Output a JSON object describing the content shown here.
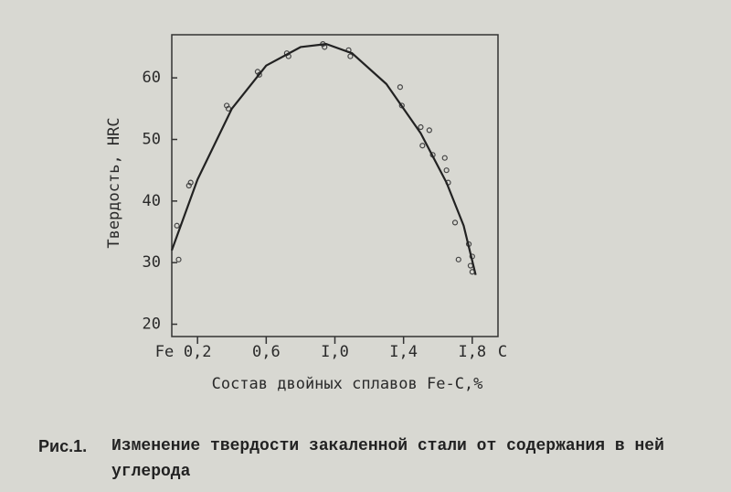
{
  "chart_data": {
    "type": "scatter",
    "y_label": "Твердость, HRC",
    "x_label": "Состав двойных сплавов Fe-C,%",
    "x_left_label": "Fe",
    "x_right_label": "C",
    "xlim": [
      0.05,
      1.95
    ],
    "xticks": [
      {
        "value": 0.2,
        "label": "0,2"
      },
      {
        "value": 0.6,
        "label": "0,6"
      },
      {
        "value": 1.0,
        "label": "I,0"
      },
      {
        "value": 1.4,
        "label": "I,4"
      },
      {
        "value": 1.8,
        "label": "I,8"
      }
    ],
    "ylim": [
      18,
      67
    ],
    "yticks": [
      20,
      30,
      40,
      50,
      60
    ],
    "series": [
      {
        "type": "scatter",
        "color": "#444",
        "x": [
          0.08,
          0.09,
          0.15,
          0.16,
          0.37,
          0.38,
          0.55,
          0.56,
          0.72,
          0.73,
          0.93,
          0.94,
          1.08,
          1.09,
          1.38,
          1.39,
          1.5,
          1.51,
          1.55,
          1.57,
          1.64,
          1.65,
          1.66,
          1.7,
          1.72,
          1.78,
          1.79,
          1.8,
          1.8
        ],
        "values": [
          36,
          30.5,
          42.5,
          43,
          55.5,
          55,
          61,
          60.5,
          64,
          63.5,
          65.5,
          65,
          64.5,
          63.5,
          58.5,
          55.5,
          52,
          49,
          51.5,
          47.5,
          47,
          45,
          43,
          36.5,
          30.5,
          33,
          29.5,
          28.5,
          31
        ]
      },
      {
        "type": "line",
        "color": "#222",
        "x": [
          0.05,
          0.2,
          0.4,
          0.6,
          0.8,
          0.95,
          1.1,
          1.3,
          1.5,
          1.65,
          1.75,
          1.82
        ],
        "values": [
          32,
          43.5,
          55,
          62,
          65,
          65.5,
          64,
          59,
          51,
          43,
          36,
          28
        ]
      }
    ]
  },
  "caption": {
    "label": "Рис.1.",
    "text": "Изменение твердости закаленной стали от содержания в ней углерода"
  }
}
